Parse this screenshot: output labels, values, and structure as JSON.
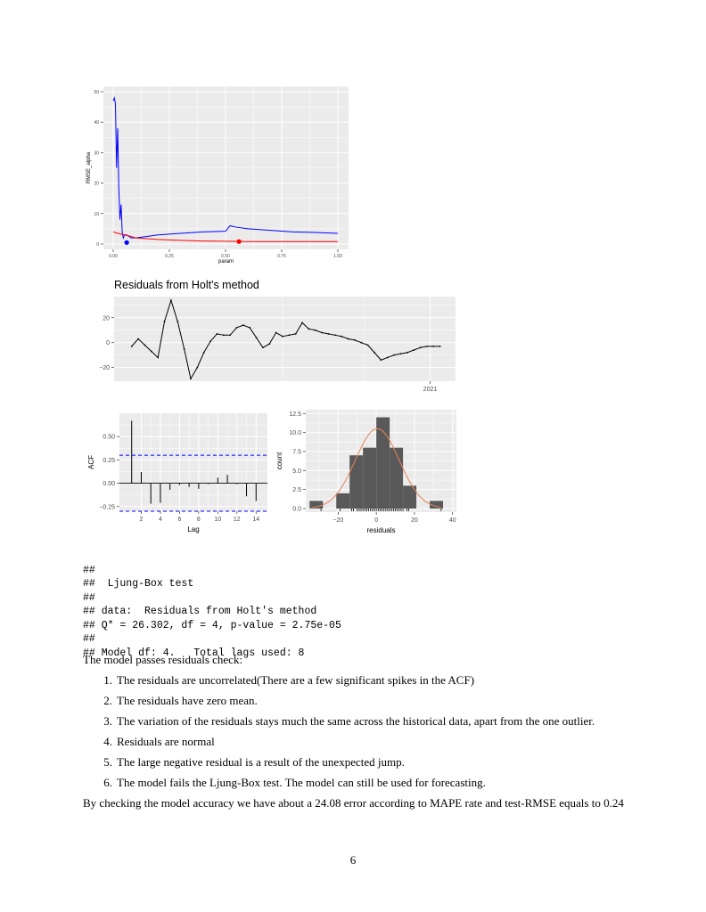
{
  "chart_data": [
    {
      "type": "line",
      "title": "",
      "xlabel": "param",
      "ylabel": "RMSE_alpha",
      "xlim": [
        0,
        1
      ],
      "ylim": [
        0,
        50
      ],
      "xticks": [
        "0.00",
        "0.25",
        "0.50",
        "0.75",
        "1.00"
      ],
      "yticks": [
        "0",
        "10",
        "20",
        "30",
        "40",
        "50"
      ],
      "series": [
        {
          "color": "#0000ff",
          "x": [
            0.0,
            0.005,
            0.01,
            0.015,
            0.02,
            0.025,
            0.03,
            0.035,
            0.04,
            0.045,
            0.05,
            0.06,
            0.08,
            0.1,
            0.15,
            0.2,
            0.3,
            0.4,
            0.5,
            0.52,
            0.55,
            0.6,
            0.7,
            0.8,
            0.9,
            1.0
          ],
          "y": [
            47,
            48,
            46,
            25,
            38,
            18,
            8,
            13,
            4,
            2,
            3,
            3,
            2,
            2,
            2.5,
            3,
            3.5,
            4,
            4.2,
            6,
            5.5,
            5,
            4.5,
            4,
            3.8,
            3.5
          ]
        },
        {
          "color": "#ff0000",
          "x": [
            0.0,
            0.02,
            0.05,
            0.08,
            0.1,
            0.2,
            0.3,
            0.4,
            0.5,
            0.6,
            0.7,
            0.8,
            0.9,
            1.0
          ],
          "y": [
            4,
            3.5,
            3,
            2.5,
            2,
            1.5,
            1.2,
            1,
            0.9,
            0.8,
            0.8,
            0.8,
            0.8,
            0.8
          ]
        }
      ],
      "points": [
        {
          "x": 0.06,
          "y": 0.5,
          "color": "#0000ff"
        },
        {
          "x": 0.56,
          "y": 0.8,
          "color": "#ff0000"
        }
      ]
    },
    {
      "type": "line",
      "title": "Residuals from Holt's method",
      "xlabel": "",
      "ylabel": "",
      "xlim": [
        0,
        50
      ],
      "ylim": [
        -31,
        37
      ],
      "xticks": [
        {
          "x": 47.5,
          "label": "2021"
        }
      ],
      "yticks": [
        20,
        0,
        -20
      ],
      "ytick_labels": [
        "20",
        "0",
        "−20"
      ],
      "series": [
        {
          "color": "#000000",
          "x": [
            2,
            3,
            4,
            5,
            6,
            7,
            8,
            9,
            10,
            11,
            12,
            13,
            14,
            15,
            16,
            17,
            18,
            19,
            20,
            21,
            22,
            23,
            24,
            25,
            26,
            27,
            28,
            29,
            30,
            31,
            32,
            33,
            34,
            35,
            36,
            37,
            38,
            39,
            40,
            41,
            42,
            43,
            44,
            45,
            46,
            47,
            48,
            49
          ],
          "y": [
            -3,
            3,
            -2,
            -7,
            -12,
            17,
            34,
            17,
            -5,
            -29,
            -20,
            -8,
            1,
            7,
            6,
            6,
            12,
            14,
            12,
            4,
            -4,
            -1,
            8,
            5,
            6,
            7,
            16,
            11,
            10,
            8,
            7,
            6,
            5,
            3,
            2,
            0,
            -2,
            -8,
            -14,
            -12,
            -10,
            -9,
            -8,
            -6,
            -4,
            -3,
            -3,
            -3
          ]
        }
      ]
    },
    {
      "type": "bar",
      "title": "",
      "xlabel": "Lag",
      "ylabel": "ACF",
      "xlim": [
        0,
        15
      ],
      "ylim": [
        -0.3,
        0.75
      ],
      "xticks": [
        "2",
        "4",
        "6",
        "8",
        "10",
        "12",
        "14"
      ],
      "yticks": [
        "0.50",
        "0.25",
        "0.00",
        "−0.25"
      ],
      "categories": [
        1,
        2,
        3,
        4,
        5,
        6,
        7,
        8,
        9,
        10,
        11,
        12,
        13,
        14
      ],
      "values": [
        0.67,
        0.12,
        -0.22,
        -0.21,
        -0.07,
        -0.02,
        -0.04,
        -0.06,
        -0.01,
        0.06,
        0.09,
        -0.01,
        -0.14,
        -0.19
      ],
      "confidence_bounds": [
        0.3,
        -0.3
      ]
    },
    {
      "type": "bar",
      "title": "",
      "xlabel": "residuals",
      "ylabel": "count",
      "xlim": [
        -37,
        42
      ],
      "ylim": [
        0,
        13
      ],
      "xticks": [
        "−20",
        "0",
        "20",
        "40"
      ],
      "yticks": [
        "0.0",
        "2.5",
        "5.0",
        "7.5",
        "10.0",
        "12.5"
      ],
      "bins": [
        {
          "x0": -35,
          "x1": -28,
          "count": 1
        },
        {
          "x0": -28,
          "x1": -21,
          "count": 0
        },
        {
          "x0": -21,
          "x1": -14,
          "count": 2
        },
        {
          "x0": -14,
          "x1": -7,
          "count": 7
        },
        {
          "x0": -7,
          "x1": 0,
          "count": 8
        },
        {
          "x0": 0,
          "x1": 7,
          "count": 12
        },
        {
          "x0": 7,
          "x1": 14,
          "count": 8
        },
        {
          "x0": 14,
          "x1": 21,
          "count": 3
        },
        {
          "x0": 21,
          "x1": 28,
          "count": 0
        },
        {
          "x0": 28,
          "x1": 35,
          "count": 1
        }
      ],
      "density_curve": {
        "color": "#e6835a",
        "mean": 0.5,
        "sd": 11.5,
        "peak_count": 10.5
      },
      "rug": [
        -29,
        -19,
        -13,
        -12,
        -10,
        -9,
        -8,
        -7,
        -6,
        -5,
        -4,
        -3,
        -2,
        -1,
        0,
        1,
        2,
        3,
        4,
        5,
        6,
        7,
        8,
        9,
        10,
        11,
        12,
        13,
        14,
        16,
        17,
        34
      ]
    }
  ],
  "console": {
    "line1": "##",
    "line2": "##  Ljung-Box test",
    "line3": "##",
    "line4": "## data:  Residuals from Holt's method",
    "line5": "## Q* = 26.302, df = 4, p-value = 2.75e-05",
    "line6": "##",
    "line7": "## Model df: 4.   Total lags used: 8"
  },
  "text": {
    "intro": "The model passes residuals check:",
    "items": [
      {
        "num": "1.",
        "text": "The residuals are uncorrelated(There are a few significant spikes in the ACF)"
      },
      {
        "num": "2.",
        "text": "The residuals have zero mean."
      },
      {
        "num": "3.",
        "text": "The variation of the residuals stays much the same across the historical data, apart from the one outlier."
      },
      {
        "num": "4.",
        "text": "Residuals are normal"
      },
      {
        "num": "5.",
        "text": "The large negative residual is a result of the unexpected jump."
      },
      {
        "num": "6.",
        "text": "The model fails the Ljung-Box test. The model can still be used for forecasting."
      }
    ],
    "conclusion": "By checking the model accuracy we have about a 24.08 error according to MAPE rate and test-RMSE equals to 0.24",
    "page_number": "6"
  }
}
